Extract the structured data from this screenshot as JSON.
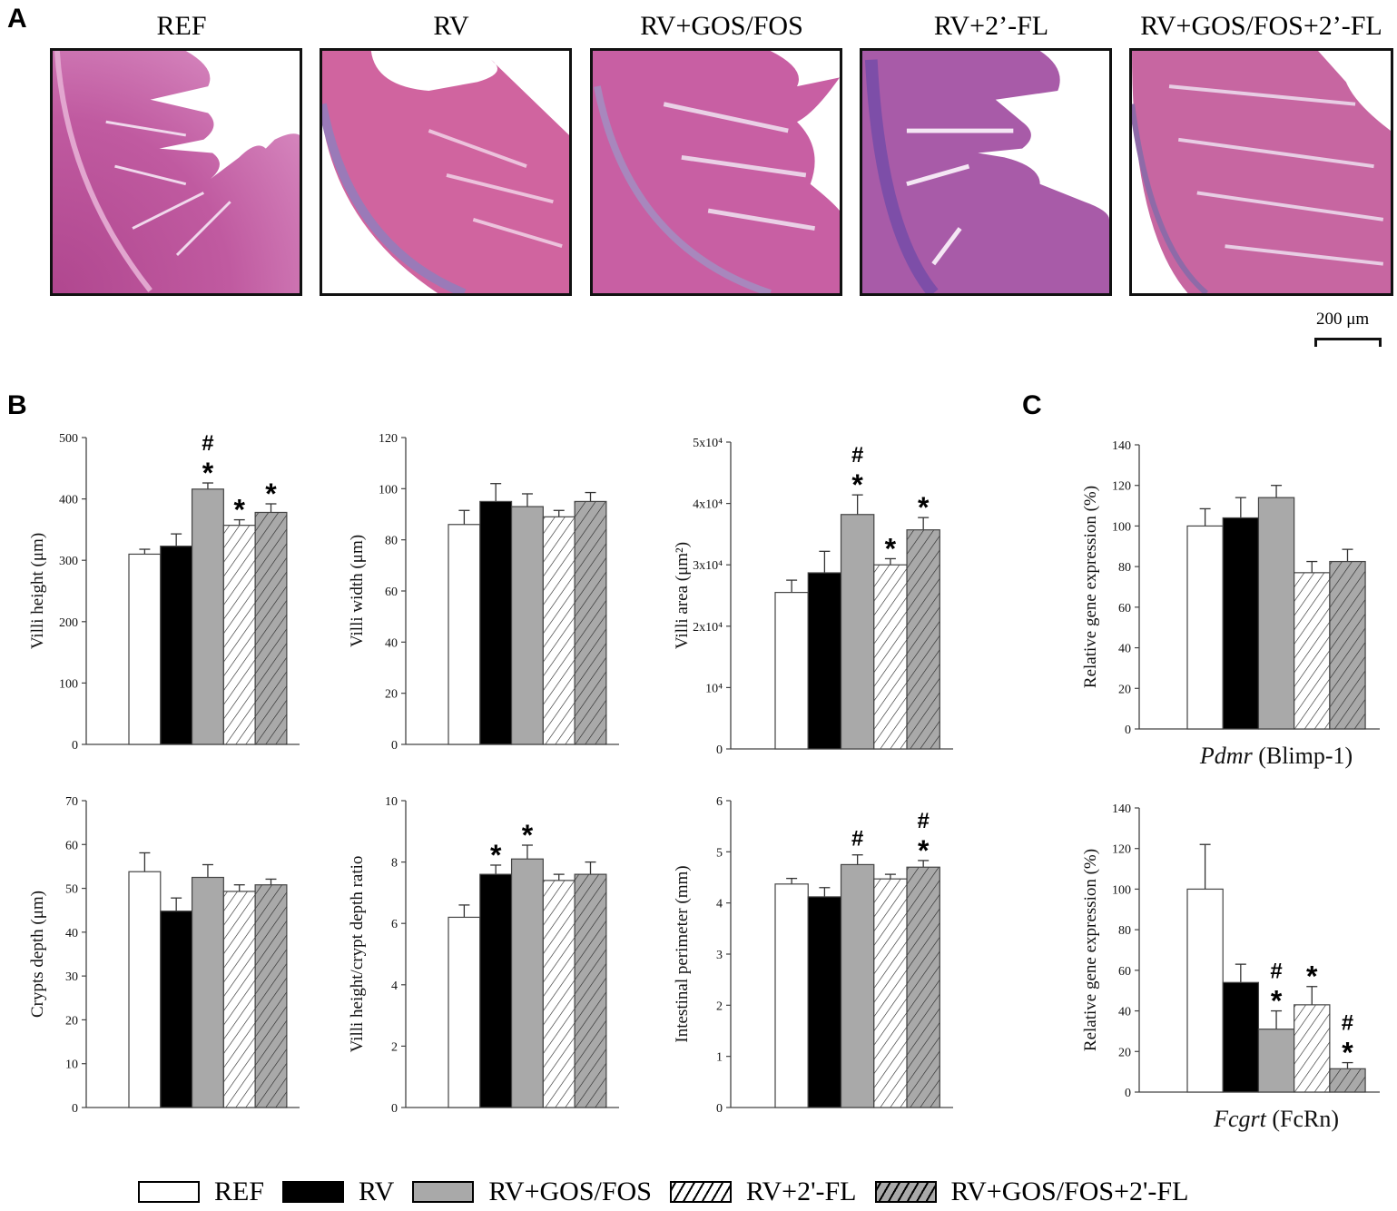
{
  "panels": {
    "A": "A",
    "B": "B",
    "C": "C"
  },
  "groups": [
    {
      "name": "REF",
      "fill": "#ffffff",
      "hatch": false
    },
    {
      "name": "RV",
      "fill": "#000000",
      "hatch": false
    },
    {
      "name": "RV+GOS/FOS",
      "fill": "#a9a9a9",
      "hatch": false
    },
    {
      "name": "RV+2'-FL",
      "fill": "#ffffff",
      "hatch": true
    },
    {
      "name": "RV+GOS/FOS+2'-FL",
      "fill": "#a9a9a9",
      "hatch": true
    }
  ],
  "micrographs": {
    "titles": [
      "REF",
      "RV",
      "RV+GOS/FOS",
      "RV+2’-FL",
      "RV+GOS/FOS+2’-FL"
    ],
    "scale_bar": "200 μm"
  },
  "legend": {
    "items": [
      "REF",
      "RV",
      "RV+GOS/FOS",
      "RV+2'-FL",
      "RV+GOS/FOS+2'-FL"
    ]
  },
  "chart_data": [
    {
      "id": "villi_height",
      "panel": "B",
      "type": "bar",
      "title": "",
      "xlabel": "",
      "ylabel": "Villi height (μm)",
      "categories": [
        "REF",
        "RV",
        "RV+GOS/FOS",
        "RV+2'-FL",
        "RV+GOS/FOS+2'-FL"
      ],
      "values": [
        310,
        323,
        416,
        357,
        378
      ],
      "errors": [
        8,
        20,
        10,
        9,
        14
      ],
      "annotations": [
        "",
        "",
        "#\n*",
        "*",
        "*"
      ],
      "ylim": [
        0,
        500
      ],
      "yticks": [
        0,
        100,
        200,
        300,
        400,
        500
      ],
      "ytick_labels": [
        "0",
        "100",
        "200",
        "300",
        "400",
        "500"
      ],
      "grid": false
    },
    {
      "id": "villi_width",
      "panel": "B",
      "type": "bar",
      "ylabel": "Villi width (μm)",
      "categories": [
        "REF",
        "RV",
        "RV+GOS/FOS",
        "RV+2'-FL",
        "RV+GOS/FOS+2'-FL"
      ],
      "values": [
        86,
        95,
        93,
        89,
        95
      ],
      "errors": [
        5.5,
        7,
        5,
        2.5,
        3.5
      ],
      "annotations": [
        "",
        "",
        "",
        "",
        ""
      ],
      "ylim": [
        0,
        120
      ],
      "yticks": [
        0,
        20,
        40,
        60,
        80,
        100,
        120
      ],
      "ytick_labels": [
        "0",
        "20",
        "40",
        "60",
        "80",
        "100",
        "120"
      ],
      "grid": false
    },
    {
      "id": "villi_area",
      "panel": "B",
      "type": "bar",
      "ylabel": "Villi area (μm²)",
      "categories": [
        "REF",
        "RV",
        "RV+GOS/FOS",
        "RV+2'-FL",
        "RV+GOS/FOS+2'-FL"
      ],
      "values": [
        25500,
        28700,
        38200,
        30000,
        35700
      ],
      "errors": [
        2000,
        3500,
        3200,
        1000,
        2000
      ],
      "annotations": [
        "",
        "",
        "#\n*",
        "*",
        "*"
      ],
      "ylim": [
        0,
        50000
      ],
      "yticks": [
        0,
        10000,
        20000,
        30000,
        40000,
        50000
      ],
      "ytick_labels": [
        "0",
        "10⁴",
        "2x10⁴",
        "3x10⁴",
        "4x10⁴",
        "5x10⁴"
      ],
      "grid": false
    },
    {
      "id": "crypts_depth",
      "panel": "B",
      "type": "bar",
      "ylabel": "Crypts depth (μm)",
      "categories": [
        "REF",
        "RV",
        "RV+GOS/FOS",
        "RV+2'-FL",
        "RV+GOS/FOS+2'-FL"
      ],
      "values": [
        53.8,
        44.8,
        52.5,
        49.3,
        50.8
      ],
      "errors": [
        4.3,
        3.0,
        2.9,
        1.5,
        1.3
      ],
      "annotations": [
        "",
        "",
        "",
        "",
        ""
      ],
      "ylim": [
        0,
        70
      ],
      "yticks": [
        0,
        10,
        20,
        30,
        40,
        50,
        60,
        70
      ],
      "ytick_labels": [
        "0",
        "10",
        "20",
        "30",
        "40",
        "50",
        "60",
        "70"
      ],
      "grid": false
    },
    {
      "id": "villi_crypt_ratio",
      "panel": "B",
      "type": "bar",
      "ylabel": "Villi height/crypt depth ratio",
      "categories": [
        "REF",
        "RV",
        "RV+GOS/FOS",
        "RV+2'-FL",
        "RV+GOS/FOS+2'-FL"
      ],
      "values": [
        6.2,
        7.6,
        8.1,
        7.4,
        7.6
      ],
      "errors": [
        0.4,
        0.3,
        0.45,
        0.2,
        0.4
      ],
      "annotations": [
        "",
        "*",
        "*",
        "",
        ""
      ],
      "ylim": [
        0,
        10
      ],
      "yticks": [
        0,
        2,
        4,
        6,
        8,
        10
      ],
      "ytick_labels": [
        "0",
        "2",
        "4",
        "6",
        "8",
        "10"
      ],
      "grid": false
    },
    {
      "id": "intestinal_perimeter",
      "panel": "B",
      "type": "bar",
      "ylabel": "Intestinal perimeter (mm)",
      "categories": [
        "REF",
        "RV",
        "RV+GOS/FOS",
        "RV+2'-FL",
        "RV+GOS/FOS+2'-FL"
      ],
      "values": [
        4.37,
        4.12,
        4.75,
        4.47,
        4.7
      ],
      "errors": [
        0.11,
        0.18,
        0.19,
        0.09,
        0.13
      ],
      "annotations": [
        "",
        "",
        "#",
        "",
        "#\n*"
      ],
      "ylim": [
        0,
        6
      ],
      "yticks": [
        0,
        1,
        2,
        3,
        4,
        5,
        6
      ],
      "ytick_labels": [
        "0",
        "1",
        "2",
        "3",
        "4",
        "5",
        "6"
      ],
      "grid": false
    },
    {
      "id": "pdmr_expression",
      "panel": "C",
      "type": "bar",
      "ylabel": "Relative gene expression (%)",
      "xlabel_italic": "Pdmr",
      "xlabel_rest": " (Blimp-1)",
      "categories": [
        "REF",
        "RV",
        "RV+GOS/FOS",
        "RV+2'-FL",
        "RV+GOS/FOS+2'-FL"
      ],
      "values": [
        100,
        104,
        114,
        77,
        82.5
      ],
      "errors": [
        8.5,
        10,
        6,
        5.5,
        6
      ],
      "annotations": [
        "",
        "",
        "",
        "",
        ""
      ],
      "ylim": [
        0,
        140
      ],
      "yticks": [
        0,
        20,
        40,
        60,
        80,
        100,
        120,
        140
      ],
      "ytick_labels": [
        "0",
        "20",
        "40",
        "60",
        "80",
        "100",
        "120",
        "140"
      ],
      "grid": false
    },
    {
      "id": "fcgrt_expression",
      "panel": "C",
      "type": "bar",
      "ylabel": "Relative gene expression (%)",
      "xlabel_italic": "Fcgrt",
      "xlabel_rest": " (FcRn)",
      "categories": [
        "REF",
        "RV",
        "RV+GOS/FOS",
        "RV+2'-FL",
        "RV+GOS/FOS+2'-FL"
      ],
      "values": [
        100,
        54,
        31,
        43,
        11.5
      ],
      "errors": [
        22,
        9,
        9,
        9,
        3
      ],
      "annotations": [
        "",
        "",
        "#\n*",
        "*",
        "#\n*"
      ],
      "ylim": [
        0,
        140
      ],
      "yticks": [
        0,
        20,
        40,
        60,
        80,
        100,
        120,
        140
      ],
      "ytick_labels": [
        "0",
        "20",
        "40",
        "60",
        "80",
        "100",
        "120",
        "140"
      ],
      "grid": false
    }
  ]
}
